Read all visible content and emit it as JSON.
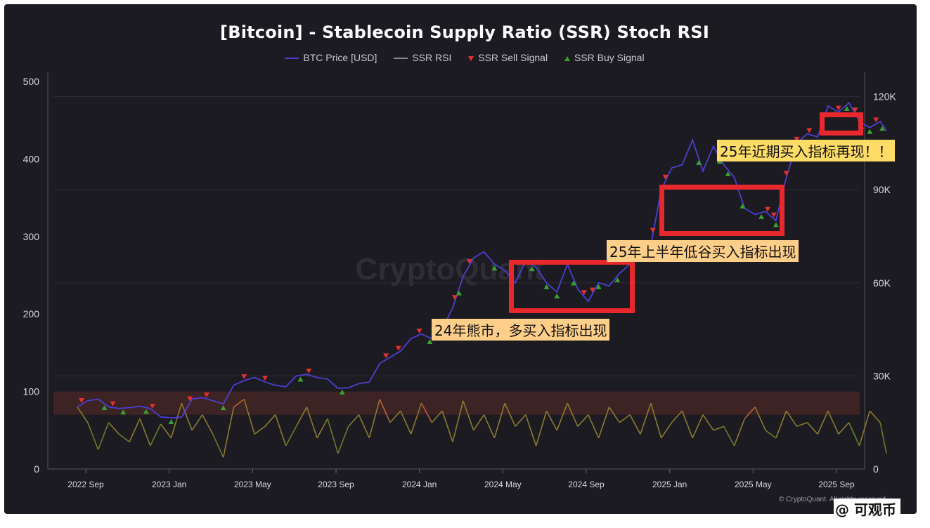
{
  "chart_data": {
    "type": "line",
    "title": "[Bitcoin] - Stablecoin Supply Ratio (SSR) Stoch RSI",
    "legend_placement": "top",
    "series": [
      {
        "name": "BTC Price [USD]",
        "color": "#4a3fd0",
        "axis": "right"
      },
      {
        "name": "SSR RSI",
        "color": "#8a7a30",
        "axis": "left"
      },
      {
        "name": "SSR Sell Signal",
        "color": "#e03030",
        "marker": "triangle-down"
      },
      {
        "name": "SSR Buy Signal",
        "color": "#3aa030",
        "marker": "triangle-up"
      }
    ],
    "x_labels": [
      "2022 Sep",
      "2023 Jan",
      "2023 May",
      "2023 Sep",
      "2024 Jan",
      "2024 May",
      "2024 Sep",
      "2025 Jan",
      "2025 May",
      "2025 Sep"
    ],
    "x_range": [
      0,
      37
    ],
    "x_label_positions": [
      1,
      5,
      9,
      13,
      17,
      21,
      25,
      29,
      33,
      37
    ],
    "left_axis": {
      "ticks": [
        0,
        100,
        200,
        300,
        400,
        500
      ],
      "range": [
        0,
        500
      ]
    },
    "right_axis": {
      "ticks": [
        "0",
        "30K",
        "60K",
        "90K",
        "120K"
      ],
      "tick_values": [
        0,
        30000,
        60000,
        90000,
        120000
      ],
      "range": [
        0,
        126000
      ]
    },
    "overbought_band": [
      70,
      100
    ],
    "btc_price": [
      [
        0,
        20000
      ],
      [
        0.5,
        22000
      ],
      [
        1,
        22500
      ],
      [
        1.5,
        20000
      ],
      [
        2,
        19500
      ],
      [
        2.5,
        19800
      ],
      [
        3,
        20200
      ],
      [
        3.5,
        19500
      ],
      [
        4,
        16800
      ],
      [
        4.5,
        16500
      ],
      [
        5,
        16700
      ],
      [
        5.5,
        22500
      ],
      [
        6,
        23000
      ],
      [
        6.5,
        22000
      ],
      [
        7,
        21000
      ],
      [
        7.5,
        27000
      ],
      [
        8,
        28500
      ],
      [
        8.5,
        29500
      ],
      [
        9,
        28000
      ],
      [
        9.5,
        27000
      ],
      [
        10,
        26500
      ],
      [
        10.5,
        30000
      ],
      [
        11,
        30500
      ],
      [
        11.5,
        29500
      ],
      [
        12,
        29000
      ],
      [
        12.5,
        26000
      ],
      [
        13,
        26200
      ],
      [
        13.5,
        27500
      ],
      [
        14,
        28000
      ],
      [
        14.5,
        34000
      ],
      [
        15,
        36000
      ],
      [
        15.5,
        38000
      ],
      [
        16,
        42000
      ],
      [
        16.5,
        43500
      ],
      [
        17,
        42000
      ],
      [
        17.5,
        45000
      ],
      [
        18,
        52000
      ],
      [
        18.5,
        62000
      ],
      [
        19,
        68000
      ],
      [
        19.5,
        70000
      ],
      [
        20,
        66000
      ],
      [
        20.5,
        64000
      ],
      [
        21,
        60000
      ],
      [
        21.5,
        67000
      ],
      [
        22,
        65000
      ],
      [
        22.5,
        60000
      ],
      [
        23,
        57000
      ],
      [
        23.5,
        66000
      ],
      [
        24,
        58000
      ],
      [
        24.5,
        54000
      ],
      [
        25,
        60000
      ],
      [
        25.5,
        59000
      ],
      [
        26,
        63000
      ],
      [
        26.5,
        66000
      ],
      [
        27,
        68000
      ],
      [
        27.5,
        72000
      ],
      [
        28,
        90000
      ],
      [
        28.5,
        97000
      ],
      [
        29,
        98000
      ],
      [
        29.5,
        106000
      ],
      [
        30,
        96000
      ],
      [
        30.5,
        104000
      ],
      [
        31,
        98000
      ],
      [
        31.5,
        94000
      ],
      [
        32,
        84000
      ],
      [
        32.5,
        82000
      ],
      [
        33,
        83000
      ],
      [
        33.5,
        80000
      ],
      [
        34,
        94000
      ],
      [
        34.5,
        105000
      ],
      [
        35,
        108000
      ],
      [
        35.5,
        107000
      ],
      [
        36,
        117000
      ],
      [
        36.5,
        115000
      ],
      [
        37,
        118000
      ],
      [
        37.5,
        112000
      ],
      [
        38,
        110000
      ],
      [
        38.5,
        112000
      ],
      [
        38.8,
        109000
      ]
    ],
    "ssr_rsi": [
      [
        0,
        80
      ],
      [
        0.5,
        60
      ],
      [
        1,
        25
      ],
      [
        1.5,
        60
      ],
      [
        2,
        45
      ],
      [
        2.5,
        35
      ],
      [
        3,
        65
      ],
      [
        3.5,
        30
      ],
      [
        4,
        58
      ],
      [
        4.5,
        40
      ],
      [
        5,
        85
      ],
      [
        5.5,
        50
      ],
      [
        6,
        70
      ],
      [
        6.5,
        45
      ],
      [
        7,
        15
      ],
      [
        7.5,
        80
      ],
      [
        8,
        90
      ],
      [
        8.5,
        45
      ],
      [
        9,
        55
      ],
      [
        9.5,
        70
      ],
      [
        10,
        30
      ],
      [
        10.5,
        55
      ],
      [
        11,
        80
      ],
      [
        11.5,
        40
      ],
      [
        12,
        65
      ],
      [
        12.5,
        20
      ],
      [
        13,
        55
      ],
      [
        13.5,
        70
      ],
      [
        14,
        40
      ],
      [
        14.5,
        90
      ],
      [
        15,
        60
      ],
      [
        15.5,
        75
      ],
      [
        16,
        45
      ],
      [
        16.5,
        85
      ],
      [
        17,
        60
      ],
      [
        17.5,
        75
      ],
      [
        18,
        35
      ],
      [
        18.5,
        88
      ],
      [
        19,
        50
      ],
      [
        19.5,
        70
      ],
      [
        20,
        40
      ],
      [
        20.5,
        85
      ],
      [
        21,
        55
      ],
      [
        21.5,
        70
      ],
      [
        22,
        30
      ],
      [
        22.5,
        75
      ],
      [
        23,
        50
      ],
      [
        23.5,
        85
      ],
      [
        24,
        55
      ],
      [
        24.5,
        70
      ],
      [
        25,
        40
      ],
      [
        25.5,
        80
      ],
      [
        26,
        60
      ],
      [
        26.5,
        70
      ],
      [
        27,
        45
      ],
      [
        27.5,
        85
      ],
      [
        28,
        40
      ],
      [
        28.5,
        60
      ],
      [
        29,
        75
      ],
      [
        29.5,
        40
      ],
      [
        30,
        70
      ],
      [
        30.5,
        50
      ],
      [
        31,
        55
      ],
      [
        31.5,
        30
      ],
      [
        32,
        65
      ],
      [
        32.5,
        80
      ],
      [
        33,
        50
      ],
      [
        33.5,
        40
      ],
      [
        34,
        75
      ],
      [
        34.5,
        55
      ],
      [
        35,
        60
      ],
      [
        35.5,
        45
      ],
      [
        36,
        75
      ],
      [
        36.5,
        45
      ],
      [
        37,
        60
      ],
      [
        37.5,
        30
      ],
      [
        38,
        75
      ],
      [
        38.5,
        60
      ],
      [
        38.8,
        20
      ]
    ],
    "sell_signals": [
      0.2,
      1.7,
      3.6,
      5.4,
      6.2,
      8.0,
      9.0,
      11.1,
      14.8,
      15.4,
      16.4,
      17.3,
      18.1,
      18.8,
      24.3,
      24.7,
      26.7,
      27.2,
      27.4,
      27.6,
      28.2,
      33.1,
      33.4,
      34.0,
      34.5,
      35.1,
      36.5,
      37.3,
      38.3
    ],
    "buy_signals": [
      1.3,
      2.2,
      3.3,
      4.5,
      7.0,
      10.7,
      12.7,
      16.9,
      18.3,
      20.0,
      21.8,
      22.5,
      23.0,
      23.8,
      25.0,
      25.9,
      29.8,
      30.8,
      31.2,
      31.9,
      32.8,
      33.5,
      36.3,
      36.9,
      37.6,
      38.0,
      38.6
    ],
    "watermark": "CryptoQuant",
    "copyright": "© CryptoQuant. All rights reserved."
  },
  "annotations": [
    {
      "text": "24年熊市，多买入指标出现"
    },
    {
      "text": "25年上半年低谷买入指标出现"
    },
    {
      "text": "25年近期买入指标再现！！"
    }
  ],
  "source_watermark": "@ 可观币"
}
